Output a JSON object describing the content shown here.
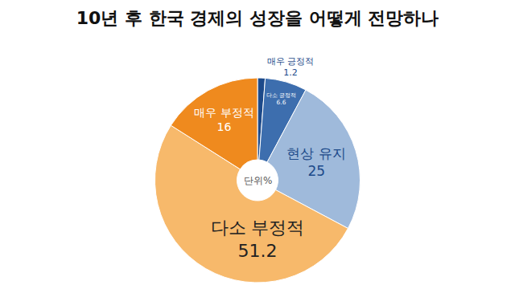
{
  "chart_data": {
    "type": "pie",
    "title": "10년 후 한국 경제의 성장을 어떻게 전망하나",
    "categories": [
      "매우 긍정적",
      "다소 긍정적",
      "현상 유지",
      "다소 부정적",
      "매우 부정적"
    ],
    "values": [
      1.2,
      6.6,
      25,
      51.2,
      16
    ],
    "colors": [
      "#1d4a8a",
      "#3d6eae",
      "#9fbadb",
      "#f7b96b",
      "#ef8a1e"
    ],
    "data_labels": true,
    "annotations": [
      "단위%"
    ]
  }
}
